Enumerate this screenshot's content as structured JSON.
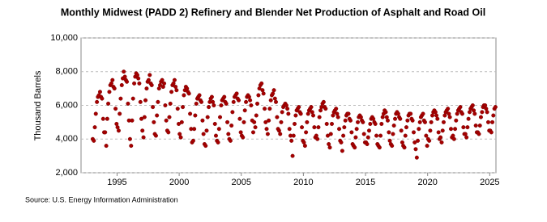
{
  "chart_data": {
    "type": "scatter",
    "title": "Monthly Midwest (PADD 2) Refinery and Blender Net Production of Asphalt and Road Oil",
    "y_label": "Thousand Barrels",
    "source": "Source: U.S. Energy Information Administration",
    "color": "#a50000",
    "grid": true,
    "xlim": [
      1992.1,
      2025.5
    ],
    "xticks": [
      1995,
      2000,
      2005,
      2010,
      2015,
      2020,
      2025
    ],
    "ylim": [
      2000,
      10000
    ],
    "yticks": [
      {
        "value": 2000,
        "label": "2,000"
      },
      {
        "value": 4000,
        "label": "4,000"
      },
      {
        "value": 6000,
        "label": "6,000"
      },
      {
        "value": 8000,
        "label": "8,000"
      },
      {
        "value": 10000,
        "label": "10,000"
      }
    ],
    "x": [
      1993.04,
      1993.13,
      1993.21,
      1993.29,
      1993.38,
      1993.46,
      1993.54,
      1993.63,
      1993.71,
      1993.79,
      1993.88,
      1993.96,
      1994.04,
      1994.13,
      1994.21,
      1994.29,
      1994.38,
      1994.46,
      1994.54,
      1994.63,
      1994.71,
      1994.79,
      1994.88,
      1994.96,
      1995.04,
      1995.13,
      1995.21,
      1995.29,
      1995.38,
      1995.46,
      1995.54,
      1995.63,
      1995.71,
      1995.79,
      1995.88,
      1995.96,
      1996.04,
      1996.13,
      1996.21,
      1996.29,
      1996.38,
      1996.46,
      1996.54,
      1996.63,
      1996.71,
      1996.79,
      1996.88,
      1996.96,
      1997.04,
      1997.13,
      1997.21,
      1997.29,
      1997.38,
      1997.46,
      1997.54,
      1997.63,
      1997.71,
      1997.79,
      1997.88,
      1997.96,
      1998.04,
      1998.13,
      1998.21,
      1998.29,
      1998.38,
      1998.46,
      1998.54,
      1998.63,
      1998.71,
      1998.79,
      1998.88,
      1998.96,
      1999.04,
      1999.13,
      1999.21,
      1999.29,
      1999.38,
      1999.46,
      1999.54,
      1999.63,
      1999.71,
      1999.79,
      1999.88,
      1999.96,
      2000.04,
      2000.13,
      2000.21,
      2000.29,
      2000.38,
      2000.46,
      2000.54,
      2000.63,
      2000.71,
      2000.79,
      2000.88,
      2000.96,
      2001.04,
      2001.13,
      2001.21,
      2001.29,
      2001.38,
      2001.46,
      2001.54,
      2001.63,
      2001.71,
      2001.79,
      2001.88,
      2001.96,
      2002.04,
      2002.13,
      2002.21,
      2002.29,
      2002.38,
      2002.46,
      2002.54,
      2002.63,
      2002.71,
      2002.79,
      2002.88,
      2002.96,
      2003.04,
      2003.13,
      2003.21,
      2003.29,
      2003.38,
      2003.46,
      2003.54,
      2003.63,
      2003.71,
      2003.79,
      2003.88,
      2003.96,
      2004.04,
      2004.13,
      2004.21,
      2004.29,
      2004.38,
      2004.46,
      2004.54,
      2004.63,
      2004.71,
      2004.79,
      2004.88,
      2004.96,
      2005.04,
      2005.13,
      2005.21,
      2005.29,
      2005.38,
      2005.46,
      2005.54,
      2005.63,
      2005.71,
      2005.79,
      2005.88,
      2005.96,
      2006.04,
      2006.13,
      2006.21,
      2006.29,
      2006.38,
      2006.46,
      2006.54,
      2006.63,
      2006.71,
      2006.79,
      2006.88,
      2006.96,
      2007.04,
      2007.13,
      2007.21,
      2007.29,
      2007.38,
      2007.46,
      2007.54,
      2007.63,
      2007.71,
      2007.79,
      2007.88,
      2007.96,
      2008.04,
      2008.13,
      2008.21,
      2008.29,
      2008.38,
      2008.46,
      2008.54,
      2008.63,
      2008.71,
      2008.79,
      2008.88,
      2008.96,
      2009.04,
      2009.13,
      2009.21,
      2009.29,
      2009.38,
      2009.46,
      2009.54,
      2009.63,
      2009.71,
      2009.79,
      2009.88,
      2009.96,
      2010.04,
      2010.13,
      2010.21,
      2010.29,
      2010.38,
      2010.46,
      2010.54,
      2010.63,
      2010.71,
      2010.79,
      2010.88,
      2010.96,
      2011.04,
      2011.13,
      2011.21,
      2011.29,
      2011.38,
      2011.46,
      2011.54,
      2011.63,
      2011.71,
      2011.79,
      2011.88,
      2011.96,
      2012.04,
      2012.13,
      2012.21,
      2012.29,
      2012.38,
      2012.46,
      2012.54,
      2012.63,
      2012.71,
      2012.79,
      2012.88,
      2012.96,
      2013.04,
      2013.13,
      2013.21,
      2013.29,
      2013.38,
      2013.46,
      2013.54,
      2013.63,
      2013.71,
      2013.79,
      2013.88,
      2013.96,
      2014.04,
      2014.13,
      2014.21,
      2014.29,
      2014.38,
      2014.46,
      2014.54,
      2014.63,
      2014.71,
      2014.79,
      2014.88,
      2014.96,
      2015.04,
      2015.13,
      2015.21,
      2015.29,
      2015.38,
      2015.46,
      2015.54,
      2015.63,
      2015.71,
      2015.79,
      2015.88,
      2015.96,
      2016.04,
      2016.13,
      2016.21,
      2016.29,
      2016.38,
      2016.46,
      2016.54,
      2016.63,
      2016.71,
      2016.79,
      2016.88,
      2016.96,
      2017.04,
      2017.13,
      2017.21,
      2017.29,
      2017.38,
      2017.46,
      2017.54,
      2017.63,
      2017.71,
      2017.79,
      2017.88,
      2017.96,
      2018.04,
      2018.13,
      2018.21,
      2018.29,
      2018.38,
      2018.46,
      2018.54,
      2018.63,
      2018.71,
      2018.79,
      2018.88,
      2018.96,
      2019.04,
      2019.13,
      2019.21,
      2019.29,
      2019.38,
      2019.46,
      2019.54,
      2019.63,
      2019.71,
      2019.79,
      2019.88,
      2019.96,
      2020.04,
      2020.13,
      2020.21,
      2020.29,
      2020.38,
      2020.46,
      2020.54,
      2020.63,
      2020.71,
      2020.79,
      2020.88,
      2020.96,
      2021.04,
      2021.13,
      2021.21,
      2021.29,
      2021.38,
      2021.46,
      2021.54,
      2021.63,
      2021.71,
      2021.79,
      2021.88,
      2021.96,
      2022.04,
      2022.13,
      2022.21,
      2022.29,
      2022.38,
      2022.46,
      2022.54,
      2022.63,
      2022.71,
      2022.79,
      2022.88,
      2022.96,
      2023.04,
      2023.13,
      2023.21,
      2023.29,
      2023.38,
      2023.46,
      2023.54,
      2023.63,
      2023.71,
      2023.79,
      2023.88,
      2023.96,
      2024.04,
      2024.13,
      2024.21,
      2024.29,
      2024.38,
      2024.46,
      2024.54,
      2024.63,
      2024.71,
      2024.79,
      2024.88,
      2024.96,
      2025.04,
      2025.13,
      2025.21,
      2025.29,
      2025.38,
      2025.46
    ],
    "values": [
      4000,
      3900,
      4700,
      5500,
      6200,
      6500,
      6600,
      6800,
      6500,
      6400,
      5200,
      4400,
      4400,
      3600,
      5200,
      6100,
      6800,
      7200,
      7300,
      7500,
      7100,
      7000,
      5800,
      4900,
      4700,
      4500,
      5500,
      6400,
      7200,
      7600,
      8000,
      7700,
      7500,
      7400,
      6100,
      5100,
      4000,
      3600,
      5100,
      6400,
      7300,
      7700,
      7900,
      7800,
      7600,
      7300,
      6200,
      5200,
      4500,
      4100,
      5300,
      6300,
      7000,
      7400,
      7500,
      7800,
      7300,
      7200,
      5900,
      5000,
      4300,
      4200,
      5400,
      6200,
      7000,
      7200,
      7400,
      7500,
      7100,
      7300,
      6000,
      5100,
      4500,
      4400,
      5300,
      6100,
      6800,
      7200,
      7300,
      7500,
      7100,
      6900,
      5800,
      4900,
      4300,
      4100,
      5000,
      5900,
      6600,
      6900,
      7100,
      7000,
      6800,
      6700,
      5500,
      4600,
      3800,
      3900,
      4600,
      5400,
      6100,
      6400,
      6500,
      6600,
      6300,
      6200,
      5100,
      4300,
      3700,
      3600,
      4500,
      5300,
      5900,
      6200,
      6400,
      6500,
      6200,
      6000,
      4900,
      4200,
      3900,
      3800,
      4600,
      5300,
      6000,
      6300,
      6400,
      6500,
      6200,
      6100,
      5000,
      4300,
      4000,
      3900,
      4800,
      5600,
      6200,
      6500,
      6600,
      6700,
      6400,
      6300,
      5200,
      4400,
      4200,
      4100,
      5000,
      5700,
      6200,
      6500,
      6600,
      6500,
      6300,
      6000,
      5100,
      4400,
      5000,
      4700,
      5400,
      6100,
      6600,
      7000,
      7200,
      7300,
      6900,
      6700,
      5800,
      5000,
      4600,
      4300,
      5100,
      5800,
      6300,
      6600,
      6700,
      6900,
      6400,
      6200,
      5300,
      4600,
      4500,
      4300,
      5000,
      5600,
      5900,
      6000,
      6100,
      6000,
      5800,
      5500,
      4600,
      4200,
      3900,
      3000,
      4200,
      4900,
      5400,
      5700,
      5800,
      5900,
      5600,
      5500,
      4700,
      3900,
      3800,
      3600,
      4400,
      5000,
      5500,
      5700,
      5800,
      5900,
      5600,
      5400,
      4700,
      4100,
      4200,
      4000,
      4700,
      5300,
      5700,
      5900,
      6100,
      6200,
      5900,
      5800,
      4900,
      4200,
      3700,
      3500,
      4300,
      4900,
      5400,
      5600,
      5700,
      5800,
      5500,
      5300,
      4600,
      3900,
      3800,
      3300,
      4200,
      4700,
      5100,
      5400,
      5500,
      5500,
      5200,
      5100,
      4400,
      3700,
      3600,
      3500,
      4100,
      4600,
      5000,
      5300,
      5400,
      5300,
      5100,
      5000,
      4300,
      3800,
      3800,
      3700,
      4100,
      4500,
      4900,
      5200,
      5300,
      5200,
      5000,
      4900,
      4200,
      3700,
      3600,
      3500,
      4200,
      4900,
      5300,
      5500,
      5700,
      5600,
      5300,
      5100,
      4400,
      3900,
      3700,
      3600,
      4300,
      4800,
      5200,
      5500,
      5600,
      5500,
      5300,
      5200,
      4500,
      3800,
      3600,
      3500,
      4200,
      4700,
      5100,
      5400,
      5500,
      5500,
      5200,
      5100,
      4400,
      3800,
      3400,
      2900,
      3900,
      4600,
      5000,
      5300,
      5400,
      5500,
      5100,
      5000,
      4200,
      3600,
      4000,
      3900,
      4500,
      5000,
      5400,
      5600,
      5700,
      5600,
      5400,
      5200,
      4400,
      4000,
      4100,
      3800,
      4500,
      5000,
      5400,
      5600,
      5700,
      5800,
      5500,
      5300,
      4600,
      4100,
      4200,
      4000,
      4600,
      5100,
      5500,
      5700,
      5800,
      5900,
      5600,
      5500,
      4700,
      4300,
      4300,
      4100,
      4700,
      5200,
      5600,
      5800,
      5900,
      6000,
      5700,
      5500,
      4800,
      4400,
      4400,
      4300,
      4800,
      5300,
      5600,
      5900,
      6000,
      6000,
      5800,
      5600,
      5000,
      4500,
      4500,
      4400,
      5000,
      5400,
      5800,
      5900
    ]
  }
}
